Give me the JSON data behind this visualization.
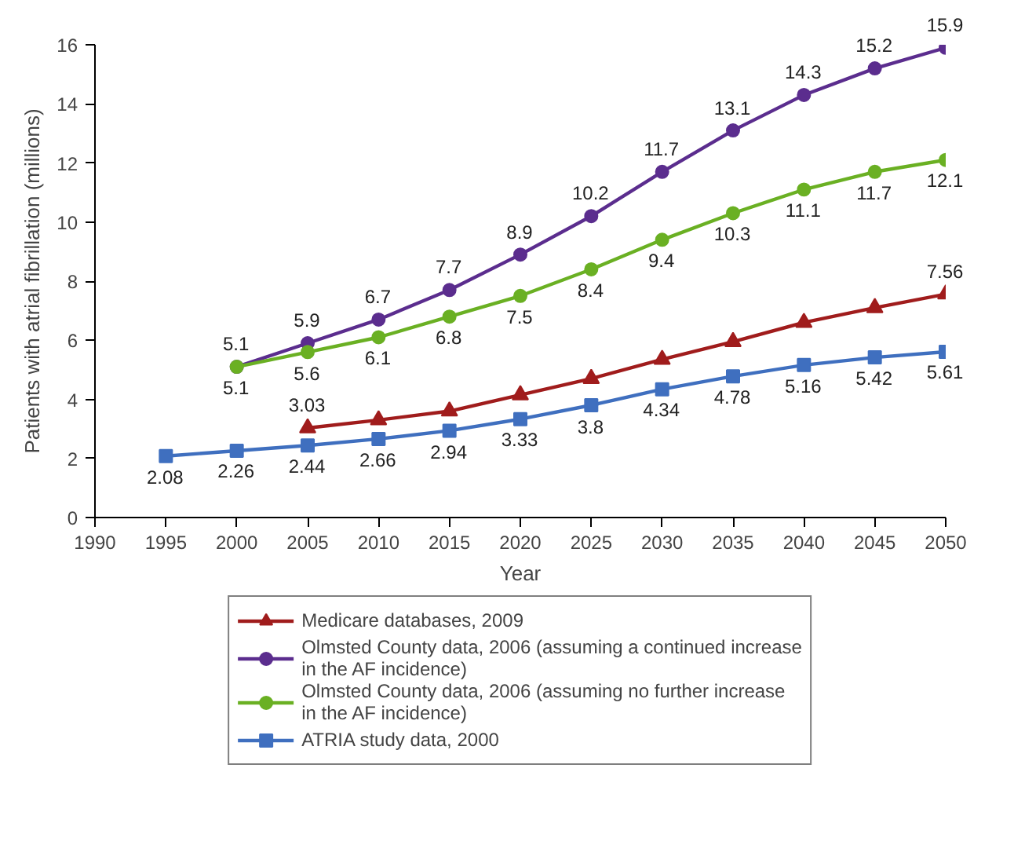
{
  "chart_data": {
    "type": "line",
    "xlabel": "Year",
    "ylabel": "Patients with atrial fibrillation (millions)",
    "x": [
      1995,
      2000,
      2005,
      2010,
      2015,
      2020,
      2025,
      2030,
      2035,
      2040,
      2045,
      2050
    ],
    "xlim": [
      1990,
      2050
    ],
    "xticks": [
      1990,
      1995,
      2000,
      2005,
      2010,
      2015,
      2020,
      2025,
      2030,
      2035,
      2040,
      2045,
      2050
    ],
    "ylim": [
      0,
      16
    ],
    "yticks": [
      0,
      2,
      4,
      6,
      8,
      10,
      12,
      14,
      16
    ],
    "grid": false,
    "legend": "bottom",
    "line_style": "solid",
    "series": [
      {
        "name": "Medicare databases, 2009",
        "color": "#a01c1c",
        "marker": "triangle",
        "values": [
          null,
          null,
          3.03,
          3.3,
          3.6,
          4.15,
          4.7,
          5.35,
          5.95,
          6.6,
          7.1,
          7.56
        ],
        "value_labels": [
          null,
          null,
          "3.03",
          null,
          null,
          null,
          null,
          null,
          null,
          null,
          null,
          "7.56"
        ]
      },
      {
        "name": "Olmsted County data, 2006 (assuming a continued increase in the AF incidence)",
        "color": "#5b2d8e",
        "marker": "circle",
        "values": [
          null,
          5.1,
          5.9,
          6.7,
          7.7,
          8.9,
          10.2,
          11.7,
          13.1,
          14.3,
          15.2,
          15.9
        ],
        "value_labels": [
          null,
          "5.1",
          "5.9",
          "6.7",
          "7.7",
          "8.9",
          "10.2",
          "11.7",
          "13.1",
          "14.3",
          "15.2",
          "15.9"
        ]
      },
      {
        "name": "Olmsted County data, 2006 (assuming no further increase in the AF incidence)",
        "color": "#6ab023",
        "marker": "circle",
        "values": [
          null,
          5.1,
          5.6,
          6.1,
          6.8,
          7.5,
          8.4,
          9.4,
          10.3,
          11.1,
          11.7,
          12.1
        ],
        "value_labels": [
          null,
          "5.1",
          "5.6",
          "6.1",
          "6.8",
          "7.5",
          "8.4",
          "9.4",
          "10.3",
          "11.1",
          "11.7",
          "12.1"
        ]
      },
      {
        "name": "ATRIA study data, 2000",
        "color": "#3f6fbf",
        "marker": "square",
        "values": [
          2.08,
          2.26,
          2.44,
          2.66,
          2.94,
          3.33,
          3.8,
          4.34,
          4.78,
          5.16,
          5.42,
          5.61
        ],
        "value_labels": [
          "2.08",
          "2.26",
          "2.44",
          "2.66",
          "2.94",
          "3.33",
          "3.8",
          "4.34",
          "4.78",
          "5.16",
          "5.42",
          "5.61"
        ]
      }
    ]
  }
}
